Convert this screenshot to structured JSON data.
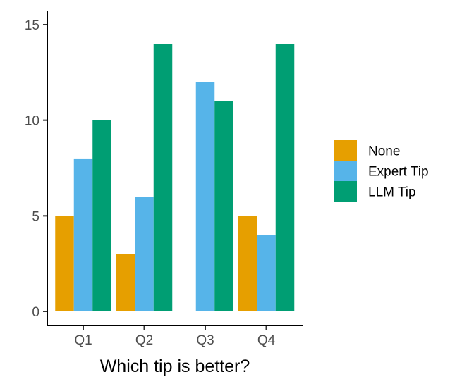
{
  "chart_data": {
    "type": "bar",
    "categories": [
      "Q1",
      "Q2",
      "Q3",
      "Q4"
    ],
    "series": [
      {
        "name": "None",
        "values": [
          5,
          3,
          0,
          5
        ],
        "color": "#E69F00"
      },
      {
        "name": "Expert Tip",
        "values": [
          8,
          6,
          12,
          4
        ],
        "color": "#56B4E9"
      },
      {
        "name": "LLM Tip",
        "values": [
          10,
          14,
          11,
          14
        ],
        "color": "#009E73"
      }
    ],
    "title": "",
    "xlabel": "Which tip is better?",
    "ylabel": "",
    "ylim": [
      0,
      15
    ],
    "yticks": [
      0,
      5,
      10,
      15
    ],
    "grid": false,
    "legend_position": "right"
  }
}
